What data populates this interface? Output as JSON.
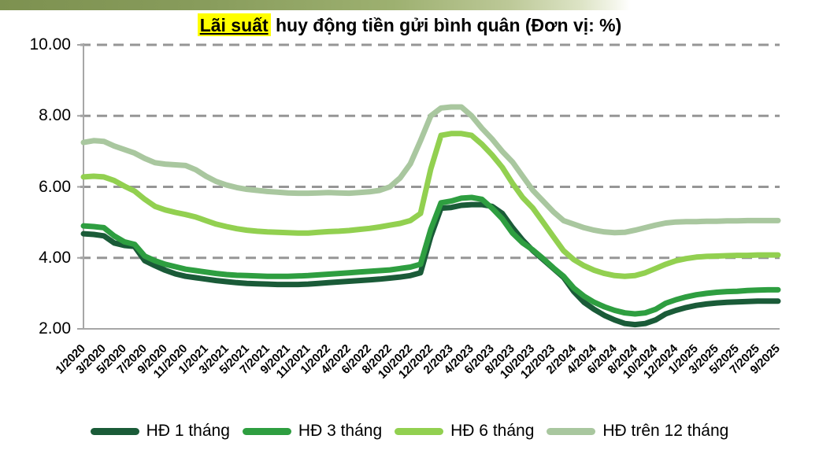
{
  "banner": {
    "gradient_left_color": "#7d9150",
    "gradient_right_color": "#ffffff"
  },
  "title": {
    "highlight": "Lãi suất",
    "rest": " huy động tiền gửi bình quân (Đơn vị: %)",
    "highlight_bg": "#ffff00"
  },
  "colors": {
    "gridline": "#969696",
    "axis": "#a6a6a6",
    "text": "#000000"
  },
  "chart_data": {
    "type": "line",
    "title": "Lãi suất huy động tiền gửi bình quân (Đơn vị: %)",
    "unit": "%",
    "grid": "horizontal-dashed",
    "legend_position": "bottom",
    "ylim": [
      2,
      10
    ],
    "y_ticks": [
      {
        "value": 10,
        "label": "10.00"
      },
      {
        "value": 8,
        "label": "8.00"
      },
      {
        "value": 6,
        "label": "6.00"
      },
      {
        "value": 4,
        "label": "4.00"
      },
      {
        "value": 2,
        "label": "2.00"
      }
    ],
    "x_points_per_label": 2,
    "x_tick_labels": [
      "1/2020",
      "3/2020",
      "5/2020",
      "7/2020",
      "9/2020",
      "11/2020",
      "1/2021",
      "3/2021",
      "5/2021",
      "7/2021",
      "9/2021",
      "11/2021",
      "1/2022",
      "4/2022",
      "6/2022",
      "8/2022",
      "10/2022",
      "12/2022",
      "2/2023",
      "4/2023",
      "6/2023",
      "8/2023",
      "10/2023",
      "12/2023",
      "2/2024",
      "4/2024",
      "6/2024",
      "8/2024",
      "10/2024",
      "12/2024",
      "1/2025",
      "3/2025",
      "5/2025",
      "7/2025",
      "9/2025"
    ],
    "series": [
      {
        "name": "HĐ 1 tháng",
        "id": "hd-1-thang",
        "color": "#1A5B38",
        "values": [
          4.68,
          4.66,
          4.62,
          4.42,
          4.35,
          4.32,
          3.92,
          3.78,
          3.65,
          3.55,
          3.48,
          3.44,
          3.4,
          3.36,
          3.33,
          3.3,
          3.28,
          3.27,
          3.26,
          3.25,
          3.25,
          3.25,
          3.26,
          3.28,
          3.3,
          3.32,
          3.34,
          3.36,
          3.38,
          3.4,
          3.43,
          3.46,
          3.5,
          3.58,
          4.6,
          5.4,
          5.42,
          5.48,
          5.5,
          5.5,
          5.45,
          5.25,
          4.85,
          4.5,
          4.2,
          3.95,
          3.7,
          3.45,
          3.05,
          2.75,
          2.55,
          2.38,
          2.25,
          2.15,
          2.12,
          2.15,
          2.25,
          2.42,
          2.52,
          2.6,
          2.66,
          2.7,
          2.73,
          2.75,
          2.76,
          2.77,
          2.78,
          2.78,
          2.78
        ]
      },
      {
        "name": "HĐ 3 tháng",
        "id": "hd-3-thang",
        "color": "#2E9E40",
        "values": [
          4.9,
          4.88,
          4.85,
          4.62,
          4.45,
          4.38,
          4.05,
          3.92,
          3.82,
          3.75,
          3.68,
          3.64,
          3.6,
          3.56,
          3.53,
          3.51,
          3.5,
          3.49,
          3.48,
          3.48,
          3.48,
          3.49,
          3.5,
          3.52,
          3.54,
          3.56,
          3.58,
          3.6,
          3.62,
          3.64,
          3.66,
          3.7,
          3.74,
          3.82,
          4.8,
          5.55,
          5.6,
          5.68,
          5.7,
          5.65,
          5.4,
          5.1,
          4.7,
          4.42,
          4.22,
          3.98,
          3.72,
          3.48,
          3.15,
          2.92,
          2.75,
          2.62,
          2.52,
          2.45,
          2.42,
          2.45,
          2.55,
          2.72,
          2.82,
          2.9,
          2.96,
          3.0,
          3.03,
          3.05,
          3.06,
          3.08,
          3.09,
          3.1,
          3.1
        ]
      },
      {
        "name": "HĐ 6 tháng",
        "id": "hd-6-thang",
        "color": "#92D050",
        "values": [
          6.28,
          6.3,
          6.28,
          6.18,
          6.02,
          5.88,
          5.65,
          5.45,
          5.35,
          5.28,
          5.22,
          5.15,
          5.05,
          4.95,
          4.88,
          4.82,
          4.78,
          4.75,
          4.73,
          4.72,
          4.71,
          4.7,
          4.7,
          4.72,
          4.74,
          4.75,
          4.77,
          4.8,
          4.83,
          4.87,
          4.92,
          4.97,
          5.05,
          5.25,
          6.5,
          7.45,
          7.5,
          7.5,
          7.45,
          7.2,
          6.9,
          6.55,
          6.1,
          5.7,
          5.4,
          5.0,
          4.6,
          4.2,
          3.95,
          3.78,
          3.65,
          3.56,
          3.5,
          3.48,
          3.5,
          3.58,
          3.7,
          3.82,
          3.92,
          3.98,
          4.02,
          4.04,
          4.05,
          4.06,
          4.07,
          4.07,
          4.08,
          4.08,
          4.08
        ]
      },
      {
        "name": "HĐ trên 12 tháng",
        "id": "hd-tren-12-thang",
        "color": "#A9C79F",
        "values": [
          7.25,
          7.3,
          7.28,
          7.15,
          7.05,
          6.95,
          6.8,
          6.68,
          6.64,
          6.62,
          6.6,
          6.48,
          6.3,
          6.15,
          6.05,
          5.98,
          5.93,
          5.9,
          5.87,
          5.85,
          5.83,
          5.82,
          5.82,
          5.83,
          5.84,
          5.83,
          5.82,
          5.84,
          5.86,
          5.9,
          6.0,
          6.25,
          6.65,
          7.3,
          8.0,
          8.22,
          8.25,
          8.25,
          8.0,
          7.65,
          7.35,
          7.0,
          6.7,
          6.3,
          5.9,
          5.6,
          5.3,
          5.05,
          4.95,
          4.85,
          4.78,
          4.73,
          4.71,
          4.72,
          4.78,
          4.85,
          4.92,
          4.98,
          5.01,
          5.02,
          5.02,
          5.03,
          5.03,
          5.04,
          5.04,
          5.05,
          5.05,
          5.05,
          5.05
        ]
      }
    ]
  }
}
